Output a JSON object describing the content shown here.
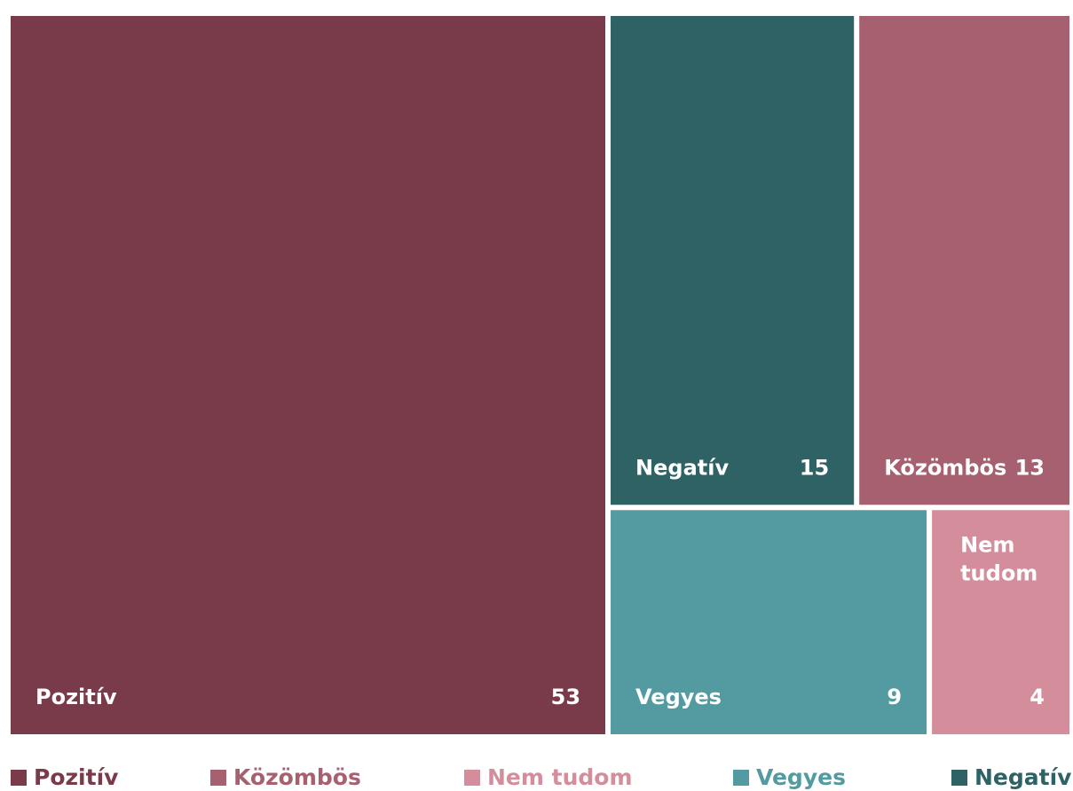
{
  "chart_data": {
    "type": "treemap",
    "title": "",
    "items": [
      {
        "name": "Pozitív",
        "value": 53,
        "color": "#793A49"
      },
      {
        "name": "Negatív",
        "value": 15,
        "color": "#2E6264"
      },
      {
        "name": "Közömbös",
        "value": 13,
        "color": "#A7606F"
      },
      {
        "name": "Vegyes",
        "value": 9,
        "color": "#539BA0"
      },
      {
        "name": "Nem tudom",
        "value": 4,
        "color": "#D48E9B"
      }
    ],
    "legend": {
      "placement": "bottom",
      "entries": [
        {
          "label": "Pozitív",
          "color": "#793A49"
        },
        {
          "label": "Közömbös",
          "color": "#A7606F"
        },
        {
          "label": "Nem tudom",
          "color": "#D48E9B"
        },
        {
          "label": "Vegyes",
          "color": "#539BA0"
        },
        {
          "label": "Negatív",
          "color": "#2E6264"
        }
      ]
    }
  }
}
